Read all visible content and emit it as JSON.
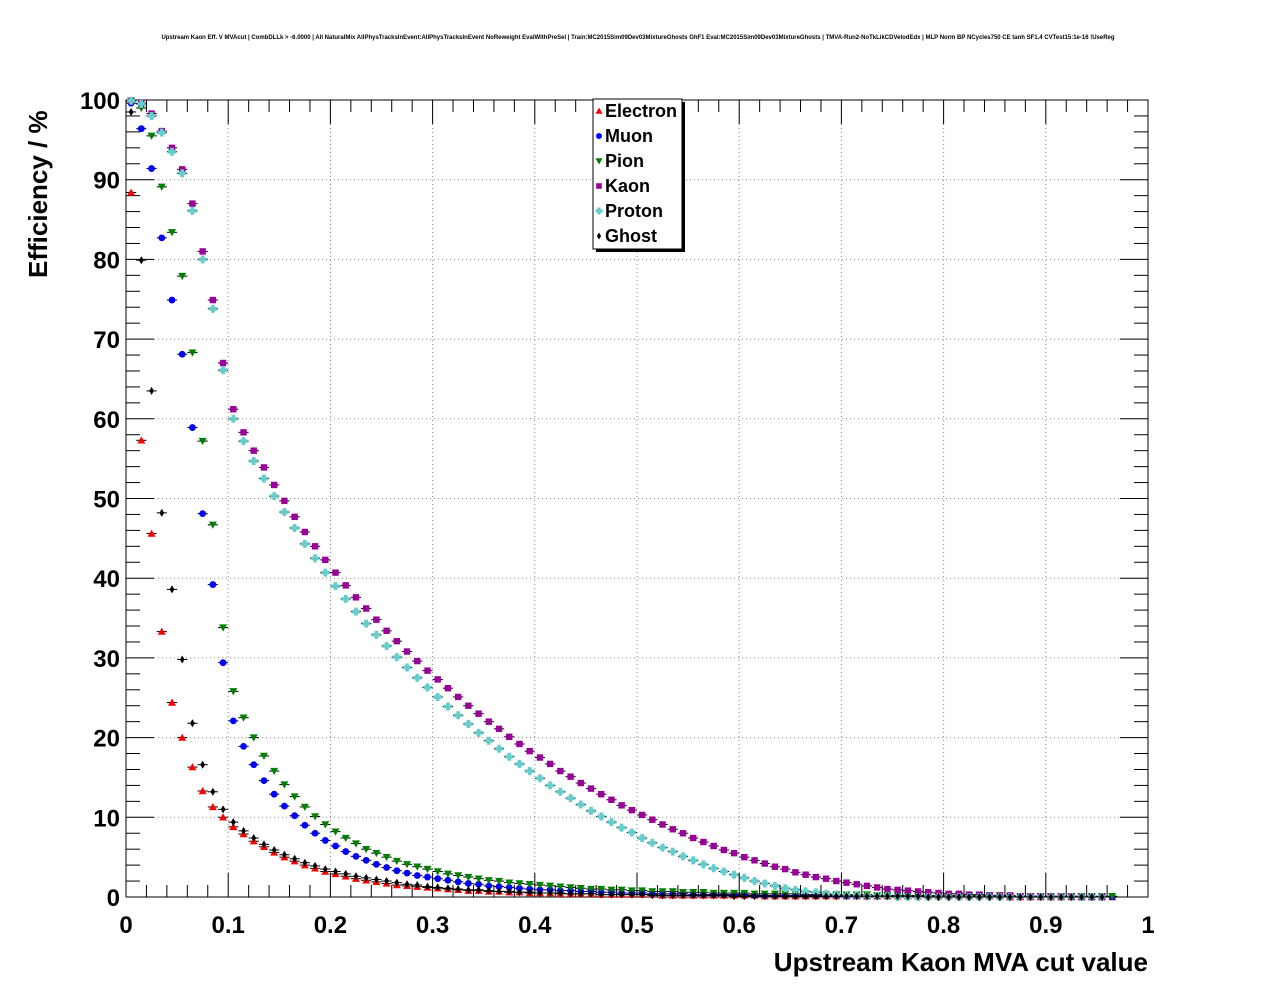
{
  "chart_data": {
    "type": "scatter",
    "title": "Upstream Kaon Eff. V MVAcut | CombDLLk > -6.0000 | All NaturalMix AllPhysTracksInEvent:AllPhysTracksInEvent NoReweight EvalWithPreSel | Train:MC2015Sim09Dev03MixtureGhosts GhF1 Eval:MC2015Sim09Dev03MixtureGhosts | TMVA-Run2-NoTkLikCDVelodEdx | MLP Norm BP NCycles750 CE tanh SF1.4 CVTest15:1e-16 !UseReg",
    "xlabel": "Upstream Kaon MVA cut value",
    "ylabel": "Efficiency / %",
    "xlim": [
      0,
      1
    ],
    "ylim": [
      0,
      100
    ],
    "grid": true,
    "legend_position": "top-center",
    "x_ticks": [
      "0",
      "0.1",
      "0.2",
      "0.3",
      "0.4",
      "0.5",
      "0.6",
      "0.7",
      "0.8",
      "0.9",
      "1"
    ],
    "y_ticks": [
      "0",
      "10",
      "20",
      "30",
      "40",
      "50",
      "60",
      "70",
      "80",
      "90",
      "100"
    ],
    "x_step": 0.01,
    "series": [
      {
        "name": "Electron",
        "color": "#ff0000",
        "marker": "triangle-up",
        "values": [
          88.4,
          57.3,
          45.6,
          33.3,
          24.4,
          20.0,
          16.3,
          13.3,
          11.3,
          10.0,
          8.8,
          7.9,
          7.0,
          6.3,
          5.6,
          5.0,
          4.5,
          4.0,
          3.6,
          3.2,
          2.9,
          2.6,
          2.3,
          2.1,
          1.9,
          1.7,
          1.5,
          1.4,
          1.3,
          1.2,
          1.1,
          1.0,
          0.9,
          0.8,
          0.8,
          0.7,
          0.7,
          0.6,
          0.6,
          0.5,
          0.5,
          0.5,
          0.4,
          0.4,
          0.4,
          0.4,
          0.3,
          0.3,
          0.3,
          0.3,
          0.3,
          0.3,
          0.2,
          0.2,
          0.2,
          0.2,
          0.2,
          0.2,
          0.2,
          0.2,
          0.2,
          0.2,
          0.1,
          0.1,
          0.1,
          0.1,
          0.1,
          0.1,
          0.1,
          0.1,
          0.1,
          0.1,
          0.1,
          0.1,
          0.1,
          0.1,
          0.1,
          0.1,
          0.1,
          0.1,
          0.1,
          0.1,
          0.1,
          0.1,
          0.1,
          0.1,
          0.0,
          0.0,
          0.0,
          0.0,
          0.0,
          0.0,
          0.0,
          0.0,
          0.0,
          0.0,
          0.0
        ]
      },
      {
        "name": "Muon",
        "color": "#0000ff",
        "marker": "circle",
        "values": [
          99.6,
          96.4,
          91.4,
          82.7,
          74.9,
          68.1,
          58.9,
          48.1,
          39.2,
          29.4,
          22.1,
          18.9,
          16.6,
          14.6,
          12.9,
          11.4,
          10.2,
          9.0,
          8.0,
          7.1,
          6.4,
          5.7,
          5.1,
          4.6,
          4.1,
          3.7,
          3.3,
          3.0,
          2.7,
          2.5,
          2.3,
          2.1,
          1.9,
          1.7,
          1.6,
          1.4,
          1.3,
          1.2,
          1.1,
          1.0,
          0.9,
          0.9,
          0.8,
          0.8,
          0.7,
          0.7,
          0.6,
          0.6,
          0.5,
          0.5,
          0.5,
          0.4,
          0.4,
          0.4,
          0.4,
          0.3,
          0.3,
          0.3,
          0.3,
          0.3,
          0.3,
          0.2,
          0.2,
          0.2,
          0.2,
          0.2,
          0.2,
          0.2,
          0.2,
          0.2,
          0.1,
          0.1,
          0.1,
          0.1,
          0.1,
          0.1,
          0.1,
          0.1,
          0.1,
          0.1,
          0.1,
          0.1,
          0.1,
          0.1,
          0.1,
          0.1,
          0.1,
          0.1,
          0.1,
          0.1,
          0.1,
          0.0,
          0.0,
          0.0,
          0.0,
          0.0,
          0.0
        ]
      },
      {
        "name": "Pion",
        "color": "#008000",
        "marker": "triangle-down",
        "values": [
          99.9,
          99.0,
          95.5,
          89.1,
          83.4,
          77.9,
          68.3,
          57.2,
          46.7,
          33.8,
          25.8,
          22.5,
          20.0,
          17.7,
          15.8,
          14.1,
          12.6,
          11.3,
          10.1,
          9.1,
          8.2,
          7.4,
          6.7,
          6.0,
          5.5,
          5.0,
          4.5,
          4.1,
          3.8,
          3.5,
          3.2,
          2.9,
          2.7,
          2.5,
          2.3,
          2.1,
          2.0,
          1.8,
          1.7,
          1.6,
          1.5,
          1.4,
          1.3,
          1.2,
          1.1,
          1.0,
          1.0,
          0.9,
          0.9,
          0.8,
          0.8,
          0.7,
          0.7,
          0.7,
          0.6,
          0.6,
          0.6,
          0.5,
          0.5,
          0.5,
          0.5,
          0.4,
          0.4,
          0.4,
          0.4,
          0.4,
          0.3,
          0.3,
          0.3,
          0.3,
          0.3,
          0.3,
          0.3,
          0.2,
          0.2,
          0.2,
          0.2,
          0.2,
          0.2,
          0.2,
          0.2,
          0.2,
          0.2,
          0.2,
          0.2,
          0.2,
          0.1,
          0.1,
          0.1,
          0.1,
          0.1,
          0.1,
          0.1,
          0.1,
          0.1,
          0.1,
          0.1
        ]
      },
      {
        "name": "Kaon",
        "color": "#990099",
        "marker": "square",
        "values": [
          99.9,
          99.6,
          98.3,
          96.1,
          94.0,
          91.3,
          87.0,
          81.0,
          74.9,
          67.0,
          61.2,
          58.3,
          56.0,
          53.9,
          51.7,
          49.7,
          47.7,
          45.8,
          44.0,
          42.3,
          40.7,
          39.1,
          37.6,
          36.2,
          34.8,
          33.4,
          32.1,
          30.8,
          29.6,
          28.4,
          27.3,
          26.2,
          25.1,
          24.0,
          23.0,
          22.0,
          21.1,
          20.1,
          19.2,
          18.3,
          17.5,
          16.7,
          15.8,
          15.1,
          14.3,
          13.6,
          12.9,
          12.2,
          11.5,
          10.9,
          10.3,
          9.7,
          9.1,
          8.5,
          8.0,
          7.4,
          6.9,
          6.4,
          5.9,
          5.5,
          5.0,
          4.6,
          4.2,
          3.8,
          3.5,
          3.1,
          2.8,
          2.5,
          2.3,
          2.0,
          1.8,
          1.6,
          1.4,
          1.2,
          1.0,
          0.9,
          0.8,
          0.7,
          0.6,
          0.5,
          0.4,
          0.4,
          0.3,
          0.3,
          0.2,
          0.2,
          0.2,
          0.1,
          0.1,
          0.1,
          0.1,
          0.1,
          0.1,
          0.0,
          0.0,
          0.0
        ]
      },
      {
        "name": "Proton",
        "color": "#66cccc",
        "marker": "cross",
        "values": [
          99.9,
          99.5,
          98.0,
          95.9,
          93.5,
          90.8,
          86.1,
          80.0,
          73.8,
          66.1,
          60.0,
          57.2,
          54.7,
          52.5,
          50.3,
          48.3,
          46.3,
          44.3,
          42.5,
          40.7,
          39.0,
          37.4,
          35.8,
          34.3,
          32.9,
          31.5,
          30.1,
          28.8,
          27.5,
          26.3,
          25.1,
          23.9,
          22.8,
          21.7,
          20.6,
          19.6,
          18.6,
          17.6,
          16.7,
          15.8,
          14.9,
          14.0,
          13.2,
          12.4,
          11.6,
          10.8,
          10.1,
          9.4,
          8.7,
          8.1,
          7.4,
          6.8,
          6.2,
          5.7,
          5.1,
          4.6,
          4.1,
          3.6,
          3.2,
          2.8,
          2.4,
          2.0,
          1.7,
          1.4,
          1.1,
          0.9,
          0.7,
          0.6,
          0.4,
          0.3,
          0.2,
          0.2,
          0.1,
          0.1,
          0.1,
          0.0,
          0.0,
          0.0,
          0.0,
          0.0,
          0.0,
          0.0,
          0.0,
          0.0,
          0.0,
          0.0,
          0.0,
          0.0,
          0.0,
          0.0,
          0.0,
          0.0,
          0.0,
          0.0,
          0.0,
          0.0
        ]
      },
      {
        "name": "Ghost",
        "color": "#000000",
        "marker": "diamond",
        "values": [
          98.5,
          79.9,
          63.5,
          48.2,
          38.6,
          29.8,
          21.8,
          16.6,
          13.2,
          11.0,
          9.4,
          8.3,
          7.4,
          6.6,
          5.9,
          5.3,
          4.8,
          4.3,
          3.9,
          3.5,
          3.2,
          2.9,
          2.6,
          2.4,
          2.2,
          2.0,
          1.8,
          1.6,
          1.5,
          1.3,
          1.2,
          1.1,
          1.0,
          0.9,
          0.9,
          0.8,
          0.7,
          0.7,
          0.6,
          0.6,
          0.5,
          0.5,
          0.5,
          0.4,
          0.4,
          0.4,
          0.3,
          0.3,
          0.3,
          0.3,
          0.3,
          0.2,
          0.2,
          0.2,
          0.2,
          0.2,
          0.2,
          0.2,
          0.2,
          0.1,
          0.1,
          0.1,
          0.1,
          0.1,
          0.1,
          0.1,
          0.1,
          0.1,
          0.1,
          0.1,
          0.1,
          0.1,
          0.1,
          0.1,
          0.1,
          0.1,
          0.1,
          0.1,
          0.0,
          0.0,
          0.0,
          0.0,
          0.0,
          0.0,
          0.0,
          0.0,
          0.0,
          0.0,
          0.0,
          0.0,
          0.0,
          0.0,
          0.0,
          0.0,
          0.0,
          0.0
        ]
      }
    ]
  }
}
